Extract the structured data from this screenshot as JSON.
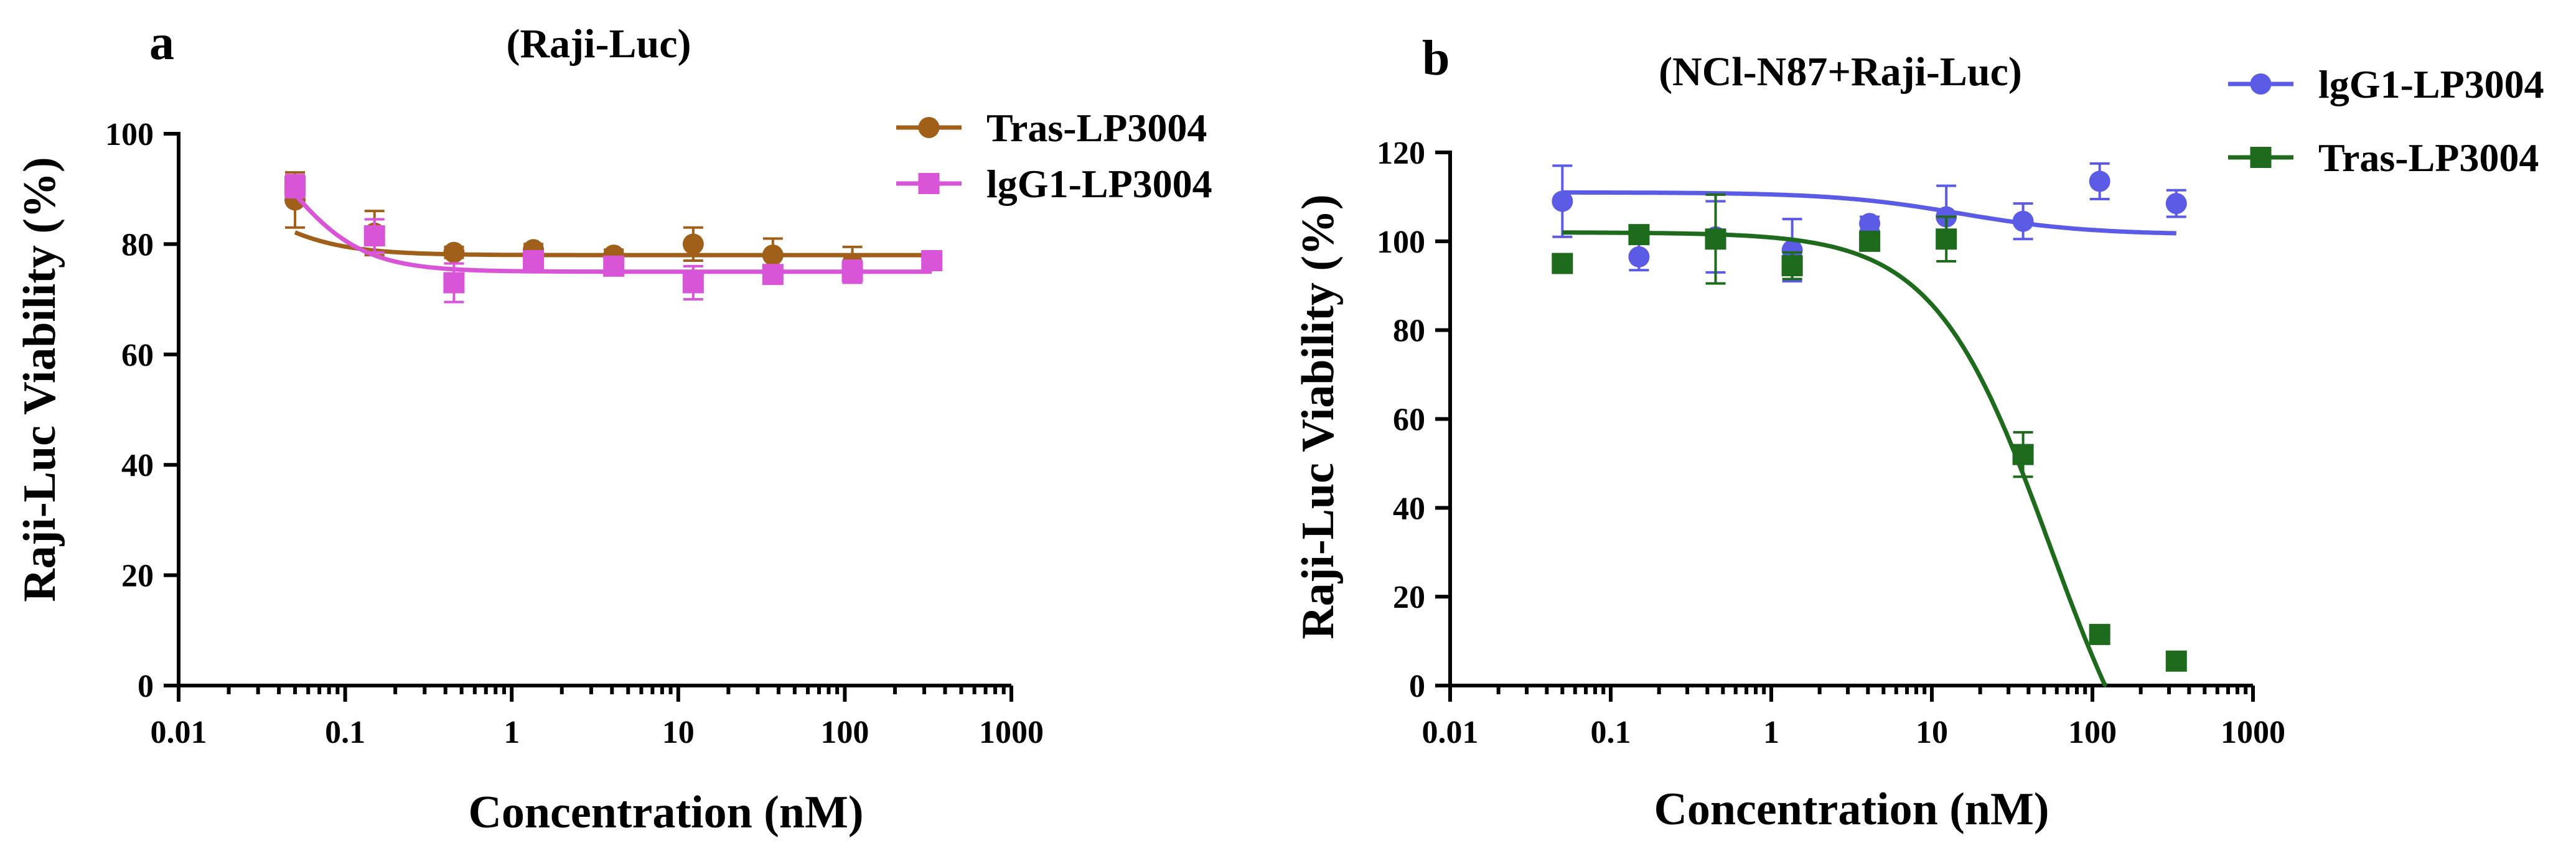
{
  "panels": [
    {
      "letter": "a",
      "title": "(Raji-Luc)",
      "xlabel": "Concentration (nM)",
      "ylabel": "Raji-Luc Viability (%)"
    },
    {
      "letter": "b",
      "title": "(NCl-N87+Raji-Luc)",
      "xlabel": "Concentration (nM)",
      "ylabel": "Raji-Luc Viability (%)"
    }
  ],
  "chart_data": [
    {
      "type": "scatter",
      "x_scale": "log",
      "xlim": [
        0.01,
        1000
      ],
      "ylim": [
        0,
        100
      ],
      "x_ticks": [
        0.01,
        0.1,
        1,
        10,
        100,
        1000
      ],
      "x_tick_labels": [
        "0.01",
        "0.1",
        "1",
        "10",
        "100",
        "1000"
      ],
      "y_ticks": [
        0,
        20,
        40,
        60,
        80,
        100
      ],
      "y_tick_labels": [
        "0",
        "20",
        "40",
        "60",
        "80",
        "100"
      ],
      "legend_position": "top-right",
      "series": [
        {
          "name": "Tras-LP3004",
          "color": "#A0601A",
          "marker": "circle",
          "x": [
            0.05,
            0.15,
            0.45,
            1.35,
            4.1,
            12.3,
            37,
            111,
            333
          ],
          "y": [
            88,
            82,
            78.5,
            79,
            78,
            80,
            78,
            76.5,
            77
          ],
          "err": [
            5,
            4,
            1,
            1,
            1,
            3,
            3,
            3,
            1
          ],
          "fit": {
            "top": 100,
            "bottom": 78,
            "ec50": 0.02,
            "hill": 1.6
          }
        },
        {
          "name": "lgG1-LP3004",
          "color": "#D855D8",
          "marker": "square",
          "x": [
            0.05,
            0.15,
            0.45,
            1.35,
            4.1,
            12.3,
            37,
            111,
            333
          ],
          "y": [
            90.5,
            81.5,
            73,
            77,
            76,
            73,
            74.5,
            75,
            77
          ],
          "err": [
            2,
            3,
            3.5,
            1,
            1,
            3,
            1,
            2,
            1
          ],
          "fit": {
            "top": 110,
            "bottom": 75,
            "ec50": 0.04,
            "hill": 1.8
          }
        }
      ]
    },
    {
      "type": "scatter",
      "x_scale": "log",
      "xlim": [
        0.01,
        1000
      ],
      "ylim": [
        0,
        120
      ],
      "x_ticks": [
        0.01,
        0.1,
        1,
        10,
        100,
        1000
      ],
      "x_tick_labels": [
        "0.01",
        "0.1",
        "1",
        "10",
        "100",
        "1000"
      ],
      "y_ticks": [
        0,
        20,
        40,
        60,
        80,
        100,
        120
      ],
      "y_tick_labels": [
        "0",
        "20",
        "40",
        "60",
        "80",
        "100",
        "120"
      ],
      "legend_position": "top-right",
      "series": [
        {
          "name": "lgG1-LP3004",
          "color": "#5B5BE6",
          "marker": "circle",
          "x": [
            0.05,
            0.15,
            0.45,
            1.35,
            4.1,
            12.3,
            37,
            111,
            333
          ],
          "y": [
            109,
            96.5,
            101,
            98,
            104,
            105.5,
            104.5,
            113.5,
            108.5
          ],
          "err": [
            8,
            3,
            8,
            7,
            1.5,
            7,
            4,
            4,
            3
          ],
          "fit": {
            "top": 111,
            "bottom": 101.5,
            "ec50": 15,
            "hill": 1.1
          }
        },
        {
          "name": "Tras-LP3004",
          "color": "#1E6B1E",
          "marker": "square",
          "x": [
            0.05,
            0.15,
            0.45,
            1.35,
            4.1,
            12.3,
            37,
            111,
            333
          ],
          "y": [
            95,
            101.5,
            100.5,
            94.5,
            100,
            100.5,
            52,
            11.5,
            5.5
          ],
          "err": [
            0,
            1,
            10,
            3,
            1,
            5,
            5,
            0,
            0
          ],
          "fit": {
            "top": 102,
            "bottom": -40,
            "ec50": 55,
            "hill": 1.2
          }
        }
      ]
    }
  ]
}
